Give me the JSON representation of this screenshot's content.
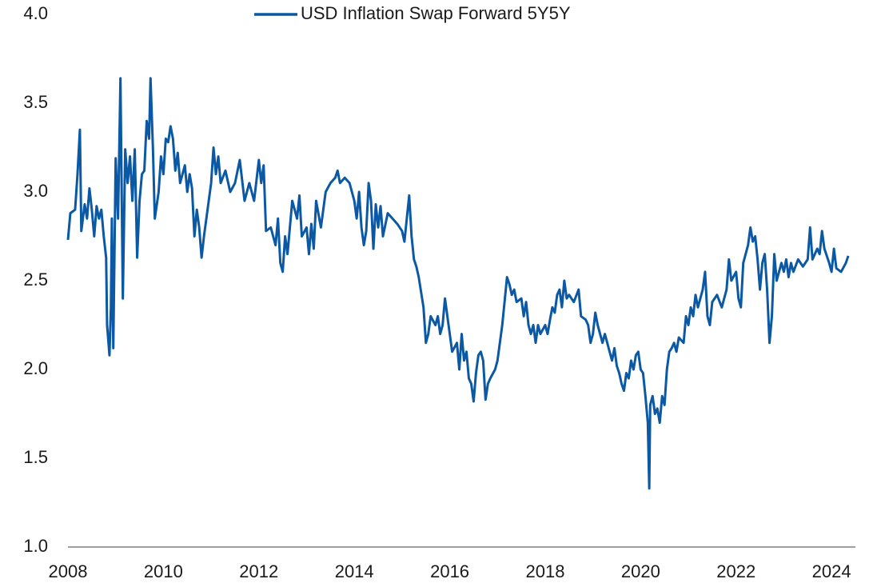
{
  "chart_data": {
    "type": "line",
    "x": [
      2008.0,
      2008.05,
      2008.15,
      2008.2,
      2008.25,
      2008.28,
      2008.35,
      2008.4,
      2008.45,
      2008.5,
      2008.55,
      2008.6,
      2008.65,
      2008.7,
      2008.75,
      2008.8,
      2008.82,
      2008.87,
      2008.9,
      2008.92,
      2008.95,
      2009.0,
      2009.05,
      2009.1,
      2009.15,
      2009.2,
      2009.25,
      2009.3,
      2009.35,
      2009.4,
      2009.45,
      2009.5,
      2009.55,
      2009.6,
      2009.65,
      2009.7,
      2009.73,
      2009.78,
      2009.82,
      2009.9,
      2009.95,
      2010.0,
      2010.05,
      2010.1,
      2010.15,
      2010.2,
      2010.25,
      2010.3,
      2010.35,
      2010.45,
      2010.5,
      2010.55,
      2010.6,
      2010.65,
      2010.7,
      2010.75,
      2010.8,
      2010.85,
      2010.95,
      2011.0,
      2011.05,
      2011.1,
      2011.15,
      2011.2,
      2011.3,
      2011.4,
      2011.5,
      2011.6,
      2011.7,
      2011.8,
      2011.9,
      2012.0,
      2012.05,
      2012.1,
      2012.15,
      2012.25,
      2012.35,
      2012.4,
      2012.45,
      2012.5,
      2012.55,
      2012.6,
      2012.7,
      2012.8,
      2012.85,
      2012.9,
      2013.0,
      2013.05,
      2013.1,
      2013.15,
      2013.2,
      2013.3,
      2013.4,
      2013.5,
      2013.6,
      2013.65,
      2013.7,
      2013.8,
      2013.9,
      2014.0,
      2014.05,
      2014.1,
      2014.15,
      2014.2,
      2014.25,
      2014.3,
      2014.35,
      2014.4,
      2014.45,
      2014.5,
      2014.55,
      2014.6,
      2014.7,
      2014.8,
      2014.9,
      2015.0,
      2015.05,
      2015.1,
      2015.15,
      2015.2,
      2015.25,
      2015.3,
      2015.35,
      2015.45,
      2015.5,
      2015.55,
      2015.6,
      2015.7,
      2015.75,
      2015.8,
      2015.85,
      2015.9,
      2015.95,
      2016.0,
      2016.05,
      2016.15,
      2016.2,
      2016.25,
      2016.3,
      2016.35,
      2016.4,
      2016.45,
      2016.5,
      2016.55,
      2016.6,
      2016.65,
      2016.7,
      2016.75,
      2016.8,
      2016.85,
      2016.95,
      2017.0,
      2017.1,
      2017.2,
      2017.25,
      2017.3,
      2017.35,
      2017.4,
      2017.5,
      2017.55,
      2017.6,
      2017.65,
      2017.7,
      2017.75,
      2017.8,
      2017.85,
      2017.9,
      2018.0,
      2018.05,
      2018.1,
      2018.15,
      2018.2,
      2018.25,
      2018.3,
      2018.35,
      2018.4,
      2018.45,
      2018.5,
      2018.6,
      2018.7,
      2018.75,
      2018.85,
      2018.9,
      2018.95,
      2019.0,
      2019.05,
      2019.1,
      2019.2,
      2019.25,
      2019.35,
      2019.4,
      2019.45,
      2019.5,
      2019.55,
      2019.6,
      2019.65,
      2019.7,
      2019.75,
      2019.8,
      2019.85,
      2019.9,
      2019.95,
      2020.0,
      2020.05,
      2020.1,
      2020.15,
      2020.18,
      2020.2,
      2020.25,
      2020.3,
      2020.35,
      2020.4,
      2020.45,
      2020.5,
      2020.55,
      2020.6,
      2020.65,
      2020.7,
      2020.75,
      2020.8,
      2020.9,
      2020.95,
      2021.0,
      2021.05,
      2021.1,
      2021.15,
      2021.2,
      2021.3,
      2021.35,
      2021.4,
      2021.45,
      2021.5,
      2021.6,
      2021.7,
      2021.8,
      2021.85,
      2021.9,
      2022.0,
      2022.05,
      2022.1,
      2022.15,
      2022.2,
      2022.25,
      2022.3,
      2022.35,
      2022.4,
      2022.45,
      2022.5,
      2022.55,
      2022.6,
      2022.65,
      2022.7,
      2022.75,
      2022.8,
      2022.85,
      2022.95,
      2023.0,
      2023.05,
      2023.1,
      2023.15,
      2023.2,
      2023.3,
      2023.4,
      2023.5,
      2023.55,
      2023.6,
      2023.7,
      2023.75,
      2023.8,
      2023.85,
      2023.95,
      2024.0,
      2024.05,
      2024.1,
      2024.2,
      2024.3,
      2024.35
    ],
    "series": [
      {
        "name": "USD Inflation Swap Forward 5Y5Y",
        "color": "#0b58a4",
        "values": [
          2.73,
          2.88,
          2.9,
          3.1,
          3.35,
          2.78,
          2.93,
          2.85,
          3.02,
          2.9,
          2.75,
          2.92,
          2.85,
          2.9,
          2.75,
          2.63,
          2.25,
          2.08,
          2.35,
          2.85,
          2.12,
          3.19,
          2.85,
          3.64,
          2.4,
          3.24,
          3.05,
          3.2,
          2.95,
          3.24,
          2.63,
          2.95,
          3.1,
          3.12,
          3.4,
          3.3,
          3.64,
          3.25,
          2.85,
          3.0,
          3.2,
          3.1,
          3.3,
          3.28,
          3.37,
          3.3,
          3.12,
          3.22,
          3.05,
          3.15,
          3.0,
          3.1,
          3.02,
          2.75,
          2.9,
          2.8,
          2.63,
          2.75,
          2.95,
          3.05,
          3.25,
          3.1,
          3.2,
          3.05,
          3.12,
          3.0,
          3.05,
          3.18,
          2.95,
          3.05,
          2.95,
          3.18,
          3.05,
          3.15,
          2.78,
          2.8,
          2.7,
          2.85,
          2.6,
          2.55,
          2.75,
          2.65,
          2.95,
          2.85,
          2.98,
          2.75,
          2.8,
          2.65,
          2.82,
          2.68,
          2.95,
          2.8,
          3.0,
          3.05,
          3.08,
          3.12,
          3.05,
          3.08,
          3.05,
          2.95,
          2.85,
          3.0,
          2.8,
          2.7,
          2.78,
          3.05,
          2.95,
          2.68,
          2.93,
          2.8,
          2.92,
          2.75,
          2.88,
          2.85,
          2.82,
          2.78,
          2.72,
          2.85,
          2.98,
          2.75,
          2.62,
          2.58,
          2.52,
          2.35,
          2.15,
          2.2,
          2.3,
          2.25,
          2.3,
          2.2,
          2.25,
          2.4,
          2.3,
          2.2,
          2.1,
          2.15,
          2.0,
          2.2,
          2.05,
          2.1,
          1.95,
          1.92,
          1.82,
          1.98,
          2.08,
          2.1,
          2.05,
          1.83,
          1.92,
          1.95,
          2.0,
          2.05,
          2.25,
          2.52,
          2.48,
          2.42,
          2.45,
          2.38,
          2.4,
          2.3,
          2.38,
          2.25,
          2.2,
          2.25,
          2.15,
          2.25,
          2.2,
          2.25,
          2.2,
          2.28,
          2.35,
          2.32,
          2.42,
          2.45,
          2.35,
          2.5,
          2.4,
          2.42,
          2.38,
          2.45,
          2.3,
          2.28,
          2.25,
          2.15,
          2.2,
          2.32,
          2.25,
          2.15,
          2.2,
          2.1,
          2.05,
          2.12,
          2.02,
          1.98,
          1.92,
          1.88,
          1.98,
          1.95,
          2.05,
          2.0,
          2.08,
          2.1,
          2.0,
          1.98,
          1.85,
          1.7,
          1.33,
          1.8,
          1.85,
          1.75,
          1.78,
          1.7,
          1.85,
          1.8,
          2.0,
          2.1,
          2.12,
          2.15,
          2.1,
          2.18,
          2.15,
          2.3,
          2.25,
          2.35,
          2.3,
          2.42,
          2.35,
          2.45,
          2.55,
          2.3,
          2.25,
          2.38,
          2.42,
          2.35,
          2.45,
          2.62,
          2.5,
          2.55,
          2.4,
          2.35,
          2.6,
          2.65,
          2.7,
          2.8,
          2.72,
          2.75,
          2.62,
          2.45,
          2.6,
          2.65,
          2.45,
          2.15,
          2.3,
          2.65,
          2.5,
          2.6,
          2.55,
          2.62,
          2.52,
          2.6,
          2.55,
          2.62,
          2.58,
          2.62,
          2.8,
          2.62,
          2.68,
          2.65,
          2.78,
          2.68,
          2.6,
          2.55,
          2.68,
          2.57,
          2.55,
          2.6,
          2.64
        ]
      }
    ],
    "xlim": [
      2008,
      2024.5
    ],
    "xticks": [
      2008,
      2010,
      2012,
      2014,
      2016,
      2018,
      2020,
      2022,
      2024
    ],
    "ylim": [
      1,
      4
    ],
    "yticks": [
      {
        "value": 1,
        "label": "1.0"
      },
      1.5,
      {
        "value": 2,
        "label": "2.0"
      },
      2.5,
      {
        "value": 3,
        "label": "3.0"
      },
      3.5,
      {
        "value": 4,
        "label": "4.0"
      }
    ],
    "grid": false,
    "legend": "top"
  }
}
